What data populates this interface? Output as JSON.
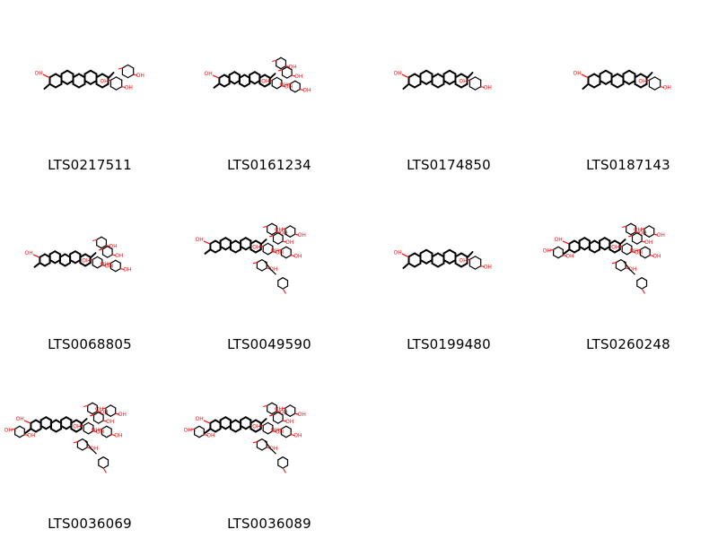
{
  "molecules": [
    {
      "id": "LTS0217511",
      "size": "small",
      "sugars": 2
    },
    {
      "id": "LTS0161234",
      "size": "medium",
      "sugars": 4
    },
    {
      "id": "LTS0174850",
      "size": "small",
      "sugars": 1
    },
    {
      "id": "LTS0187143",
      "size": "small",
      "sugars": 1
    },
    {
      "id": "LTS0068805",
      "size": "medium",
      "sugars": 4
    },
    {
      "id": "LTS0049590",
      "size": "large",
      "sugars": 6
    },
    {
      "id": "LTS0199480",
      "size": "small",
      "sugars": 1
    },
    {
      "id": "LTS0260248",
      "size": "large",
      "sugars": 7
    },
    {
      "id": "LTS0036069",
      "size": "large",
      "sugars": 7
    },
    {
      "id": "LTS0036089",
      "size": "large",
      "sugars": 7
    }
  ],
  "colors": {
    "bond": "#000000",
    "heteroatom": "#ff0d0d",
    "background": "#ffffff",
    "text": "#000000"
  }
}
